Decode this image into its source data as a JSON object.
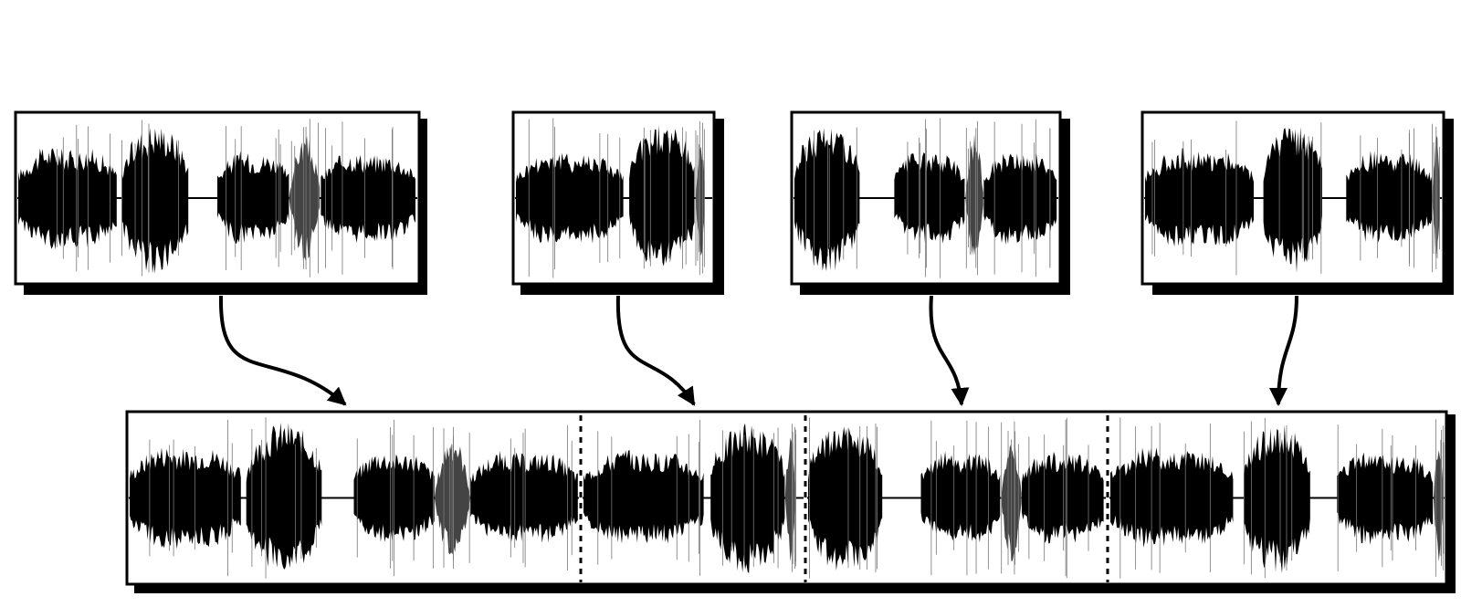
{
  "diagram": {
    "kind": "waveform-concatenation",
    "colors": {
      "background": "#ffffff",
      "stroke": "#000000",
      "shadow": "#000000",
      "waveform": "#000000",
      "separator": "#000000"
    },
    "source_clips": [
      {
        "id": "clip-1",
        "segments": [
          [
            0.0,
            0.25,
            0.78,
            "ripple"
          ],
          [
            0.26,
            0.43,
            0.95,
            "burst"
          ],
          [
            0.5,
            0.68,
            0.7,
            "ripple"
          ],
          [
            0.68,
            0.76,
            0.8,
            "swell"
          ],
          [
            0.76,
            1.0,
            0.7,
            "ripple"
          ]
        ]
      },
      {
        "id": "clip-2",
        "segments": [
          [
            0.0,
            0.55,
            0.72,
            "ripple"
          ],
          [
            0.58,
            0.92,
            0.95,
            "burst"
          ],
          [
            0.92,
            0.97,
            0.8,
            "swell"
          ]
        ]
      },
      {
        "id": "clip-3",
        "segments": [
          [
            0.0,
            0.25,
            0.95,
            "burst"
          ],
          [
            0.38,
            0.65,
            0.7,
            "ripple"
          ],
          [
            0.65,
            0.72,
            0.8,
            "swell"
          ],
          [
            0.72,
            1.0,
            0.7,
            "ripple"
          ]
        ]
      },
      {
        "id": "clip-4",
        "segments": [
          [
            0.0,
            0.37,
            0.75,
            "ripple"
          ],
          [
            0.4,
            0.6,
            0.95,
            "burst"
          ],
          [
            0.68,
            0.97,
            0.7,
            "ripple"
          ],
          [
            0.97,
            1.0,
            0.8,
            "swell"
          ]
        ]
      }
    ],
    "result_segments": 4,
    "separator_style": "dotted"
  }
}
